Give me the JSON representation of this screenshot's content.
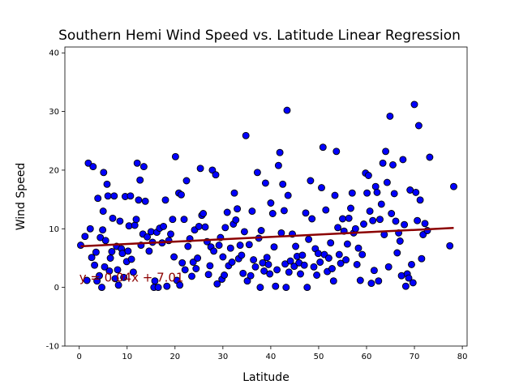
{
  "chart_data": {
    "type": "scatter",
    "title": "Southern Hemi Wind Speed vs. Latitude Linear Regression",
    "xlabel": "Latitude",
    "ylabel": "Wind Speed",
    "xlim": [
      -3,
      81
    ],
    "ylim": [
      -10,
      41
    ],
    "xticks": [
      0,
      10,
      20,
      30,
      40,
      50,
      60,
      70,
      80
    ],
    "yticks": [
      -10,
      0,
      10,
      20,
      30,
      40
    ],
    "grid": false,
    "colors": {
      "points": "#0000ff",
      "point_edge": "#000000",
      "line": "#8b0000",
      "equation": "#8b0000"
    },
    "regression": {
      "slope": 0.04,
      "intercept": 7.01,
      "x_range": [
        0.3,
        78.2
      ],
      "label": "y = 0.04x + 7.01",
      "label_anchor": [
        0,
        1.0
      ]
    },
    "series": [
      {
        "points": [
          [
            0.3,
            7.2
          ],
          [
            1.2,
            8.7
          ],
          [
            1.6,
            1.2
          ],
          [
            1.9,
            21.2
          ],
          [
            2.3,
            10.0
          ],
          [
            2.6,
            5.1
          ],
          [
            2.9,
            20.6
          ],
          [
            3.2,
            3.8
          ],
          [
            3.5,
            6.0
          ],
          [
            3.7,
            1.1
          ],
          [
            3.9,
            15.2
          ],
          [
            4.2,
            2.0
          ],
          [
            4.4,
            8.5
          ],
          [
            4.7,
            0.0
          ],
          [
            4.9,
            9.8
          ],
          [
            5.0,
            13.0
          ],
          [
            5.1,
            19.6
          ],
          [
            5.3,
            3.5
          ],
          [
            5.5,
            8.0
          ],
          [
            5.8,
            17.6
          ],
          [
            6.0,
            15.6
          ],
          [
            6.3,
            2.8
          ],
          [
            6.5,
            5.0
          ],
          [
            6.8,
            6.1
          ],
          [
            7.0,
            11.8
          ],
          [
            7.3,
            15.6
          ],
          [
            7.5,
            1.5
          ],
          [
            7.8,
            7.0
          ],
          [
            8.0,
            3.0
          ],
          [
            8.2,
            0.4
          ],
          [
            8.5,
            11.3
          ],
          [
            8.8,
            6.6
          ],
          [
            9.0,
            5.8
          ],
          [
            9.3,
            1.7
          ],
          [
            9.6,
            15.5
          ],
          [
            9.9,
            4.4
          ],
          [
            10.2,
            6.2
          ],
          [
            10.4,
            10.5
          ],
          [
            10.7,
            15.6
          ],
          [
            10.9,
            4.8
          ],
          [
            11.3,
            2.6
          ],
          [
            11.6,
            10.6
          ],
          [
            11.9,
            11.6
          ],
          [
            12.1,
            21.2
          ],
          [
            12.4,
            14.9
          ],
          [
            12.7,
            18.3
          ],
          [
            12.9,
            7.2
          ],
          [
            13.3,
            9.1
          ],
          [
            13.5,
            20.6
          ],
          [
            13.8,
            14.7
          ],
          [
            14.2,
            8.6
          ],
          [
            14.6,
            6.2
          ],
          [
            15.0,
            9.5
          ],
          [
            15.3,
            7.7
          ],
          [
            15.6,
            0.0
          ],
          [
            15.8,
            1.1
          ],
          [
            16.2,
            9.4
          ],
          [
            16.5,
            0.0
          ],
          [
            16.8,
            10.1
          ],
          [
            17.3,
            7.6
          ],
          [
            17.6,
            10.4
          ],
          [
            18.0,
            14.9
          ],
          [
            18.3,
            0.2
          ],
          [
            18.7,
            8.0
          ],
          [
            19.1,
            9.1
          ],
          [
            19.5,
            11.6
          ],
          [
            19.8,
            5.2
          ],
          [
            20.1,
            22.3
          ],
          [
            20.4,
            1.2
          ],
          [
            20.8,
            16.1
          ],
          [
            21.0,
            0.4
          ],
          [
            21.3,
            15.8
          ],
          [
            21.5,
            4.2
          ],
          [
            21.9,
            11.6
          ],
          [
            22.1,
            3.0
          ],
          [
            22.4,
            18.2
          ],
          [
            22.7,
            7.0
          ],
          [
            23.1,
            8.3
          ],
          [
            23.5,
            1.9
          ],
          [
            23.8,
            4.3
          ],
          [
            24.1,
            9.8
          ],
          [
            24.4,
            3.2
          ],
          [
            24.7,
            5.0
          ],
          [
            25.0,
            10.4
          ],
          [
            25.3,
            20.3
          ],
          [
            25.6,
            12.3
          ],
          [
            25.9,
            12.6
          ],
          [
            26.3,
            10.3
          ],
          [
            26.7,
            7.8
          ],
          [
            27.0,
            2.2
          ],
          [
            27.3,
            3.7
          ],
          [
            27.5,
            6.9
          ],
          [
            27.8,
            20.0
          ],
          [
            28.1,
            6.2
          ],
          [
            28.5,
            19.2
          ],
          [
            28.8,
            0.6
          ],
          [
            29.2,
            7.2
          ],
          [
            29.5,
            8.5
          ],
          [
            29.8,
            1.4
          ],
          [
            30.0,
            5.2
          ],
          [
            30.3,
            2.1
          ],
          [
            30.5,
            10.2
          ],
          [
            30.9,
            12.8
          ],
          [
            31.2,
            3.7
          ],
          [
            31.6,
            6.7
          ],
          [
            31.9,
            4.3
          ],
          [
            32.2,
            10.8
          ],
          [
            32.4,
            16.1
          ],
          [
            32.7,
            11.5
          ],
          [
            33.0,
            13.4
          ],
          [
            33.3,
            4.9
          ],
          [
            33.6,
            7.2
          ],
          [
            33.9,
            5.5
          ],
          [
            34.2,
            2.4
          ],
          [
            34.5,
            9.5
          ],
          [
            34.8,
            25.9
          ],
          [
            35.1,
            1.1
          ],
          [
            35.5,
            7.3
          ],
          [
            35.8,
            2.0
          ],
          [
            36.1,
            13.0
          ],
          [
            36.4,
            4.7
          ],
          [
            36.8,
            3.5
          ],
          [
            37.2,
            19.6
          ],
          [
            37.5,
            8.4
          ],
          [
            37.8,
            0.0
          ],
          [
            38.0,
            9.7
          ],
          [
            38.3,
            4.2
          ],
          [
            38.6,
            2.8
          ],
          [
            38.9,
            17.8
          ],
          [
            39.2,
            5.1
          ],
          [
            39.5,
            3.9
          ],
          [
            39.8,
            2.3
          ],
          [
            40.0,
            14.4
          ],
          [
            40.4,
            12.6
          ],
          [
            40.7,
            6.9
          ],
          [
            41.0,
            0.2
          ],
          [
            41.3,
            3.0
          ],
          [
            41.6,
            20.8
          ],
          [
            41.9,
            23.0
          ],
          [
            42.2,
            9.3
          ],
          [
            42.5,
            17.6
          ],
          [
            42.8,
            13.1
          ],
          [
            43.0,
            4.0
          ],
          [
            43.2,
            0.0
          ],
          [
            43.4,
            30.2
          ],
          [
            43.6,
            15.7
          ],
          [
            43.8,
            2.6
          ],
          [
            44.1,
            4.5
          ],
          [
            44.5,
            9.1
          ],
          [
            44.9,
            3.6
          ],
          [
            45.2,
            7.0
          ],
          [
            45.5,
            5.3
          ],
          [
            45.9,
            4.2
          ],
          [
            46.2,
            2.3
          ],
          [
            46.6,
            5.5
          ],
          [
            47.0,
            3.8
          ],
          [
            47.3,
            12.7
          ],
          [
            47.6,
            0.0
          ],
          [
            47.9,
            8.2
          ],
          [
            48.3,
            18.2
          ],
          [
            48.6,
            11.7
          ],
          [
            49.0,
            3.5
          ],
          [
            49.3,
            6.6
          ],
          [
            49.6,
            2.1
          ],
          [
            49.9,
            5.8
          ],
          [
            50.3,
            4.3
          ],
          [
            50.6,
            17.0
          ],
          [
            50.9,
            23.9
          ],
          [
            51.2,
            5.6
          ],
          [
            51.5,
            13.2
          ],
          [
            51.8,
            2.7
          ],
          [
            52.1,
            5.0
          ],
          [
            52.5,
            7.6
          ],
          [
            52.8,
            3.2
          ],
          [
            53.1,
            1.1
          ],
          [
            53.4,
            15.7
          ],
          [
            53.7,
            23.2
          ],
          [
            54.0,
            10.2
          ],
          [
            54.3,
            5.6
          ],
          [
            54.6,
            4.1
          ],
          [
            55.0,
            11.7
          ],
          [
            55.3,
            9.6
          ],
          [
            55.7,
            4.7
          ],
          [
            56.0,
            7.4
          ],
          [
            56.3,
            11.8
          ],
          [
            56.7,
            13.5
          ],
          [
            57.0,
            16.1
          ],
          [
            57.3,
            9.3
          ],
          [
            57.7,
            10.0
          ],
          [
            58.0,
            3.9
          ],
          [
            58.3,
            6.7
          ],
          [
            58.7,
            1.2
          ],
          [
            59.1,
            5.6
          ],
          [
            59.4,
            10.8
          ],
          [
            59.8,
            19.5
          ],
          [
            60.1,
            16.1
          ],
          [
            60.4,
            19.1
          ],
          [
            60.7,
            13.0
          ],
          [
            61.0,
            0.7
          ],
          [
            61.3,
            11.4
          ],
          [
            61.6,
            2.9
          ],
          [
            61.9,
            17.2
          ],
          [
            62.2,
            16.2
          ],
          [
            62.5,
            1.1
          ],
          [
            62.8,
            11.6
          ],
          [
            63.1,
            14.2
          ],
          [
            63.4,
            21.2
          ],
          [
            63.7,
            9.0
          ],
          [
            64.0,
            23.2
          ],
          [
            64.3,
            17.9
          ],
          [
            64.6,
            3.5
          ],
          [
            64.9,
            29.2
          ],
          [
            65.2,
            12.6
          ],
          [
            65.5,
            20.9
          ],
          [
            65.8,
            16.0
          ],
          [
            66.1,
            11.3
          ],
          [
            66.4,
            5.9
          ],
          [
            66.7,
            9.3
          ],
          [
            67.0,
            7.9
          ],
          [
            67.3,
            2.0
          ],
          [
            67.6,
            21.8
          ],
          [
            67.9,
            10.7
          ],
          [
            68.2,
            0.2
          ],
          [
            68.5,
            2.3
          ],
          [
            68.8,
            1.6
          ],
          [
            69.1,
            16.6
          ],
          [
            69.4,
            3.9
          ],
          [
            69.7,
            0.8
          ],
          [
            70.0,
            31.2
          ],
          [
            70.3,
            16.2
          ],
          [
            70.6,
            11.4
          ],
          [
            70.9,
            27.6
          ],
          [
            71.2,
            14.9
          ],
          [
            71.5,
            4.9
          ],
          [
            71.8,
            9.0
          ],
          [
            72.2,
            10.9
          ],
          [
            72.7,
            9.7
          ],
          [
            73.2,
            22.2
          ],
          [
            77.4,
            7.1
          ],
          [
            78.2,
            17.2
          ]
        ]
      }
    ]
  }
}
